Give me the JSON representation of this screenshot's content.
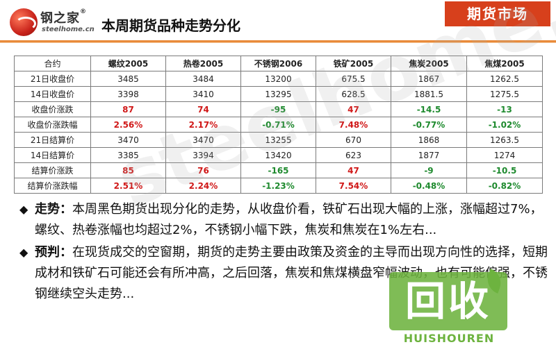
{
  "header": {
    "logo_cn": "钢之家",
    "logo_mark": "®",
    "logo_en": "steelhome.cn",
    "title": "本周期货品种走势分化",
    "tag": "期货市场"
  },
  "table": {
    "columns": [
      "合约",
      "螺纹2005",
      "热卷2005",
      "不锈钢2006",
      "铁矿2005",
      "焦炭2005",
      "焦煤2005"
    ],
    "rows": [
      {
        "label": "21日收盘价",
        "values": [
          "3485",
          "3484",
          "13200",
          "675.5",
          "1867",
          "1262.5"
        ],
        "style": [
          "plain",
          "plain",
          "plain",
          "plain",
          "plain",
          "plain"
        ]
      },
      {
        "label": "14日收盘价",
        "values": [
          "3398",
          "3410",
          "13295",
          "628.5",
          "1881.5",
          "1275.5"
        ],
        "style": [
          "plain",
          "plain",
          "plain",
          "plain",
          "plain",
          "plain"
        ]
      },
      {
        "label": "收盘价涨跌",
        "values": [
          "87",
          "74",
          "-95",
          "47",
          "-14.5",
          "-13"
        ],
        "style": [
          "red",
          "red",
          "green",
          "red",
          "green",
          "green"
        ]
      },
      {
        "label": "收盘价涨跌幅",
        "values": [
          "2.56%",
          "2.17%",
          "-0.71%",
          "7.48%",
          "-0.77%",
          "-1.02%"
        ],
        "style": [
          "red",
          "red",
          "green",
          "red",
          "green",
          "green"
        ]
      },
      {
        "label": "21日结算价",
        "values": [
          "3470",
          "3470",
          "13255",
          "670",
          "1868",
          "1263.5"
        ],
        "style": [
          "plain",
          "plain",
          "plain",
          "plain",
          "plain",
          "plain"
        ]
      },
      {
        "label": "14日结算价",
        "values": [
          "3385",
          "3394",
          "13420",
          "623",
          "1877",
          "1274"
        ],
        "style": [
          "plain",
          "plain",
          "plain",
          "plain",
          "plain",
          "plain"
        ]
      },
      {
        "label": "结算价涨跌",
        "values": [
          "85",
          "76",
          "-165",
          "47",
          "-9",
          "-10.5"
        ],
        "style": [
          "red",
          "red",
          "green",
          "red",
          "green",
          "green"
        ]
      },
      {
        "label": "结算价涨跌幅",
        "values": [
          "2.51%",
          "2.24%",
          "-1.23%",
          "7.54%",
          "-0.48%",
          "-0.82%"
        ],
        "style": [
          "red",
          "red",
          "green",
          "red",
          "green",
          "green"
        ]
      }
    ]
  },
  "colors": {
    "up": "#d01818",
    "down": "#1e8a2e",
    "accent": "#d7401c"
  },
  "bullets": [
    {
      "icon": "diamond-bullet-icon",
      "keyword": "走势：",
      "text": "本周黑色期货出现分化的走势，从收盘价看，铁矿石出现大幅的上涨，涨幅超过7%，螺纹、热卷涨幅也均超过2%，不锈钢小幅下跌，焦炭和焦炭在1%左右..."
    },
    {
      "icon": "diamond-bullet-icon",
      "keyword": "预判：",
      "text": "在现货成交的空窗期，期货的走势主要由政策及资金的主导而出现方向性的选择，短期成材和铁矿石可能还会有所冲高，之后回落，焦炭和焦煤横盘窄幅波动，也有可能偏强，不锈钢继续空头走势..."
    }
  ],
  "watermark": "steelhome.cn",
  "recycle_logo": {
    "cn": "回收",
    "en": "HUISHOUREN"
  }
}
